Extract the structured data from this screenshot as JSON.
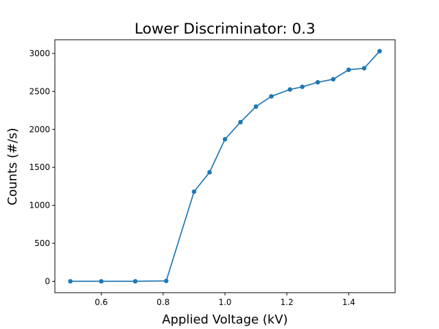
{
  "chart_data": {
    "type": "line",
    "title": "Lower Discriminator: 0.3",
    "xlabel": "Applied Voltage (kV)",
    "ylabel": "Counts (#/s)",
    "xlim": [
      0.45,
      1.55
    ],
    "ylim": [
      -150,
      3180
    ],
    "xticks": [
      0.6,
      0.8,
      1.0,
      1.2,
      1.4
    ],
    "xtick_labels": [
      "0.6",
      "0.8",
      "1.0",
      "1.2",
      "1.4"
    ],
    "yticks": [
      0,
      500,
      1000,
      1500,
      2000,
      2500,
      3000
    ],
    "ytick_labels": [
      "0",
      "500",
      "1000",
      "1500",
      "2000",
      "2500",
      "3000"
    ],
    "grid": false,
    "color": "#1f77b4",
    "series": [
      {
        "x": [
          0.5,
          0.6,
          0.71,
          0.81,
          0.9,
          0.95,
          1.0,
          1.05,
          1.1,
          1.15,
          1.21,
          1.25,
          1.3,
          1.35,
          1.4,
          1.45,
          1.5
        ],
        "y": [
          0,
          0,
          0,
          5,
          1180,
          1435,
          1870,
          2095,
          2300,
          2435,
          2525,
          2560,
          2620,
          2660,
          2785,
          2805,
          3030
        ]
      }
    ]
  }
}
